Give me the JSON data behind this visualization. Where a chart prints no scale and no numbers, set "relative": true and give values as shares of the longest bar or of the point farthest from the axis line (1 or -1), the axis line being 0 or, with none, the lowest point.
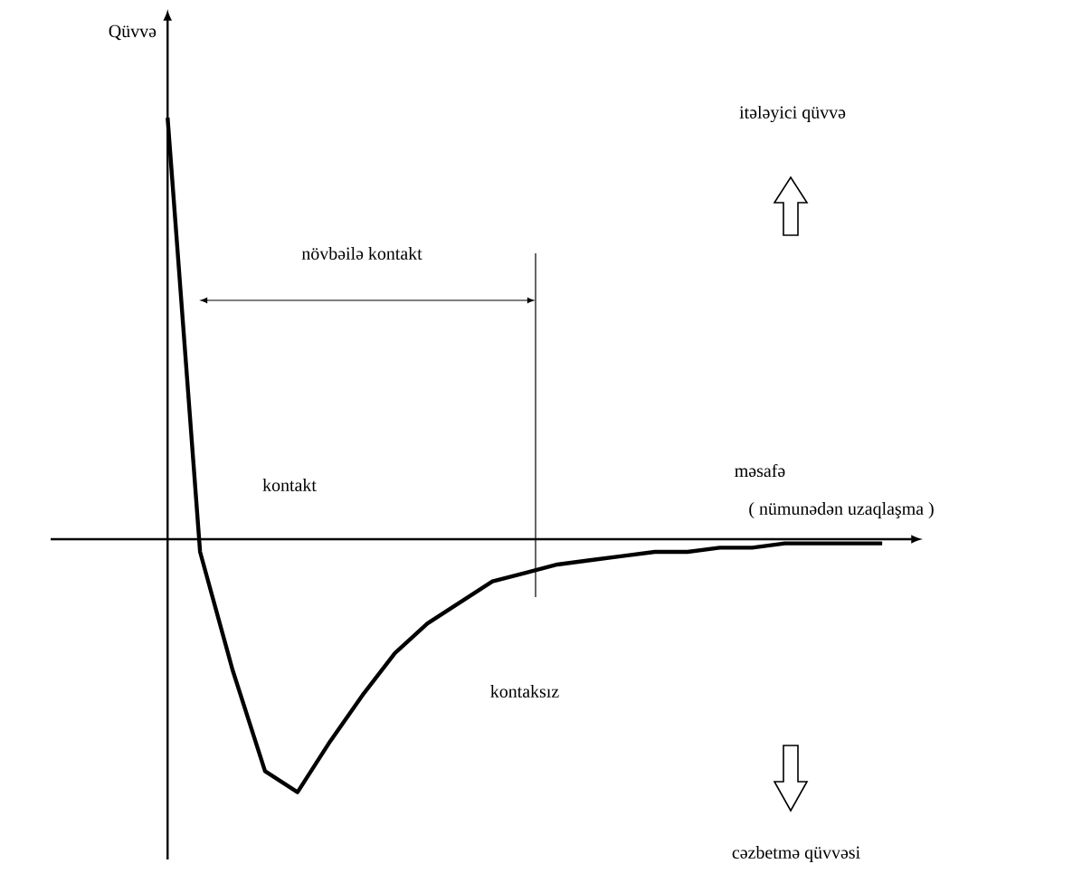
{
  "chart_data": {
    "type": "line",
    "relative": true,
    "ylabel": "Qüvvə",
    "xlabel": "məsafə",
    "categories": [
      null,
      null,
      null,
      null,
      null,
      null,
      null,
      null,
      null,
      null,
      null,
      null,
      null,
      null,
      null,
      null,
      null,
      null,
      null,
      null,
      null,
      null,
      null
    ],
    "series": [
      {
        "color": "#000000",
        "values": [
          1.0,
          -0.03,
          -0.31,
          -0.55,
          -0.6,
          -0.48,
          -0.37,
          -0.27,
          -0.2,
          -0.15,
          -0.1,
          -0.08,
          -0.06,
          -0.05,
          -0.04,
          -0.03,
          -0.03,
          -0.02,
          -0.02,
          -0.01,
          -0.01,
          -0.01,
          -0.01
        ]
      }
    ],
    "annotations": [
      "( nümunədən uzaqlaşma )",
      "itələyici qüvvə",
      "növbəilə kontakt",
      "kontakt",
      "kontaksız",
      "cəzbetmə qüvvəsi"
    ]
  }
}
